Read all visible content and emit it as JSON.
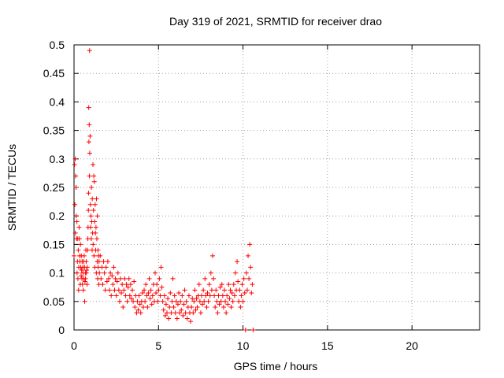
{
  "chart_data": {
    "type": "scatter",
    "title": "Day 319 of 2021, SRMTID for receiver drao",
    "xlabel": "GPS time / hours",
    "ylabel": "SRMTID / TECUs",
    "xlim": [
      0,
      24
    ],
    "ylim": [
      0,
      0.5
    ],
    "xticks": [
      0,
      5,
      10,
      15,
      20
    ],
    "yticks": [
      0,
      0.05,
      0.1,
      0.15,
      0.2,
      0.25,
      0.3,
      0.35,
      0.4,
      0.45,
      0.5
    ],
    "xtick_labels": [
      "0",
      "5",
      "10",
      "15",
      "20"
    ],
    "ytick_labels": [
      "0",
      "0.05",
      "0.1",
      "0.15",
      "0.2",
      "0.25",
      "0.3",
      "0.35",
      "0.4",
      "0.45",
      "0.5"
    ],
    "grid": true,
    "marker": "+",
    "series": [
      {
        "name": "SRMTID",
        "color": "#ff0000",
        "points": [
          [
            0.0,
            0.13
          ],
          [
            0.03,
            0.29
          ],
          [
            0.05,
            0.22
          ],
          [
            0.07,
            0.3
          ],
          [
            0.08,
            0.17
          ],
          [
            0.1,
            0.27
          ],
          [
            0.12,
            0.25
          ],
          [
            0.13,
            0.2
          ],
          [
            0.15,
            0.16
          ],
          [
            0.17,
            0.19
          ],
          [
            0.18,
            0.1
          ],
          [
            0.2,
            0.12
          ],
          [
            0.22,
            0.16
          ],
          [
            0.23,
            0.09
          ],
          [
            0.25,
            0.14
          ],
          [
            0.27,
            0.07
          ],
          [
            0.28,
            0.11
          ],
          [
            0.3,
            0.18
          ],
          [
            0.32,
            0.16
          ],
          [
            0.33,
            0.13
          ],
          [
            0.35,
            0.12
          ],
          [
            0.37,
            0.08
          ],
          [
            0.38,
            0.15
          ],
          [
            0.4,
            0.11
          ],
          [
            0.42,
            0.095
          ],
          [
            0.43,
            0.13
          ],
          [
            0.45,
            0.105
          ],
          [
            0.47,
            0.09
          ],
          [
            0.48,
            0.12
          ],
          [
            0.5,
            0.08
          ],
          [
            0.52,
            0.11
          ],
          [
            0.53,
            0.1
          ],
          [
            0.55,
            0.07
          ],
          [
            0.57,
            0.12
          ],
          [
            0.58,
            0.09
          ],
          [
            0.6,
            0.13
          ],
          [
            0.62,
            0.11
          ],
          [
            0.63,
            0.05
          ],
          [
            0.65,
            0.085
          ],
          [
            0.67,
            0.1
          ],
          [
            0.68,
            0.09
          ],
          [
            0.7,
            0.14
          ],
          [
            0.72,
            0.12
          ],
          [
            0.73,
            0.1
          ],
          [
            0.75,
            0.105
          ],
          [
            0.77,
            0.08
          ],
          [
            0.78,
            0.11
          ],
          [
            0.8,
            0.14
          ],
          [
            0.82,
            0.16
          ],
          [
            0.83,
            0.18
          ],
          [
            0.85,
            0.21
          ],
          [
            0.86,
            0.24
          ],
          [
            0.87,
            0.39
          ],
          [
            0.88,
            0.33
          ],
          [
            0.9,
            0.36
          ],
          [
            0.91,
            0.27
          ],
          [
            0.92,
            0.49
          ],
          [
            0.93,
            0.31
          ],
          [
            0.95,
            0.34
          ],
          [
            0.97,
            0.22
          ],
          [
            0.98,
            0.18
          ],
          [
            1.0,
            0.2
          ],
          [
            1.02,
            0.16
          ],
          [
            1.03,
            0.25
          ],
          [
            1.05,
            0.19
          ],
          [
            1.07,
            0.14
          ],
          [
            1.08,
            0.23
          ],
          [
            1.1,
            0.17
          ],
          [
            1.12,
            0.29
          ],
          [
            1.13,
            0.15
          ],
          [
            1.15,
            0.21
          ],
          [
            1.17,
            0.27
          ],
          [
            1.18,
            0.13
          ],
          [
            1.2,
            0.26
          ],
          [
            1.22,
            0.19
          ],
          [
            1.23,
            0.11
          ],
          [
            1.25,
            0.22
          ],
          [
            1.27,
            0.17
          ],
          [
            1.28,
            0.14
          ],
          [
            1.3,
            0.18
          ],
          [
            1.32,
            0.1
          ],
          [
            1.33,
            0.23
          ],
          [
            1.35,
            0.16
          ],
          [
            1.37,
            0.12
          ],
          [
            1.38,
            0.2
          ],
          [
            1.4,
            0.09
          ],
          [
            1.42,
            0.14
          ],
          [
            1.43,
            0.11
          ],
          [
            1.45,
            0.13
          ],
          [
            1.47,
            0.08
          ],
          [
            1.48,
            0.12
          ],
          [
            1.5,
            0.1
          ],
          [
            1.55,
            0.13
          ],
          [
            1.6,
            0.09
          ],
          [
            1.65,
            0.11
          ],
          [
            1.7,
            0.08
          ],
          [
            1.75,
            0.12
          ],
          [
            1.8,
            0.1
          ],
          [
            1.85,
            0.07
          ],
          [
            1.9,
            0.11
          ],
          [
            1.95,
            0.085
          ],
          [
            2.0,
            0.12
          ],
          [
            2.05,
            0.09
          ],
          [
            2.1,
            0.07
          ],
          [
            2.15,
            0.1
          ],
          [
            2.2,
            0.06
          ],
          [
            2.25,
            0.095
          ],
          [
            2.3,
            0.08
          ],
          [
            2.35,
            0.11
          ],
          [
            2.4,
            0.07
          ],
          [
            2.45,
            0.09
          ],
          [
            2.5,
            0.06
          ],
          [
            2.55,
            0.085
          ],
          [
            2.6,
            0.1
          ],
          [
            2.65,
            0.07
          ],
          [
            2.7,
            0.05
          ],
          [
            2.75,
            0.09
          ],
          [
            2.8,
            0.065
          ],
          [
            2.85,
            0.08
          ],
          [
            2.9,
            0.04
          ],
          [
            2.95,
            0.07
          ],
          [
            3.0,
            0.09
          ],
          [
            3.05,
            0.06
          ],
          [
            3.1,
            0.08
          ],
          [
            3.15,
            0.05
          ],
          [
            3.2,
            0.075
          ],
          [
            3.25,
            0.09
          ],
          [
            3.3,
            0.06
          ],
          [
            3.35,
            0.08
          ],
          [
            3.4,
            0.055
          ],
          [
            3.45,
            0.07
          ],
          [
            3.5,
            0.05
          ],
          [
            3.55,
            0.085
          ],
          [
            3.6,
            0.04
          ],
          [
            3.65,
            0.06
          ],
          [
            3.7,
            0.03
          ],
          [
            3.75,
            0.05
          ],
          [
            3.8,
            0.035
          ],
          [
            3.85,
            0.06
          ],
          [
            3.9,
            0.045
          ],
          [
            3.95,
            0.03
          ],
          [
            4.0,
            0.05
          ],
          [
            4.05,
            0.065
          ],
          [
            4.1,
            0.04
          ],
          [
            4.15,
            0.07
          ],
          [
            4.2,
            0.05
          ],
          [
            4.25,
            0.08
          ],
          [
            4.3,
            0.06
          ],
          [
            4.35,
            0.04
          ],
          [
            4.4,
            0.065
          ],
          [
            4.45,
            0.09
          ],
          [
            4.5,
            0.055
          ],
          [
            4.55,
            0.07
          ],
          [
            4.6,
            0.045
          ],
          [
            4.65,
            0.06
          ],
          [
            4.7,
            0.08
          ],
          [
            4.75,
            0.05
          ],
          [
            4.8,
            0.1
          ],
          [
            4.85,
            0.065
          ],
          [
            4.9,
            0.08
          ],
          [
            4.95,
            0.05
          ],
          [
            5.0,
            0.07
          ],
          [
            5.05,
            0.09
          ],
          [
            5.1,
            0.06
          ],
          [
            5.15,
            0.11
          ],
          [
            5.2,
            0.075
          ],
          [
            5.25,
            0.05
          ],
          [
            5.3,
            0.035
          ],
          [
            5.35,
            0.06
          ],
          [
            5.4,
            0.025
          ],
          [
            5.45,
            0.045
          ],
          [
            5.5,
            0.03
          ],
          [
            5.55,
            0.055
          ],
          [
            5.6,
            0.02
          ],
          [
            5.65,
            0.04
          ],
          [
            5.7,
            0.065
          ],
          [
            5.75,
            0.03
          ],
          [
            5.8,
            0.05
          ],
          [
            5.85,
            0.09
          ],
          [
            5.9,
            0.04
          ],
          [
            5.95,
            0.06
          ],
          [
            6.0,
            0.03
          ],
          [
            6.05,
            0.05
          ],
          [
            6.1,
            0.02
          ],
          [
            6.15,
            0.045
          ],
          [
            6.2,
            0.065
          ],
          [
            6.25,
            0.03
          ],
          [
            6.3,
            0.05
          ],
          [
            6.35,
            0.035
          ],
          [
            6.4,
            0.06
          ],
          [
            6.45,
            0.025
          ],
          [
            6.5,
            0.045
          ],
          [
            6.55,
            0.07
          ],
          [
            6.6,
            0.03
          ],
          [
            6.65,
            0.05
          ],
          [
            6.7,
            0.02
          ],
          [
            6.75,
            0.04
          ],
          [
            6.8,
            0.06
          ],
          [
            6.85,
            0.03
          ],
          [
            6.9,
            0.015
          ],
          [
            6.95,
            0.04
          ],
          [
            7.0,
            0.055
          ],
          [
            7.05,
            0.03
          ],
          [
            7.1,
            0.05
          ],
          [
            7.15,
            0.07
          ],
          [
            7.2,
            0.035
          ],
          [
            7.25,
            0.055
          ],
          [
            7.3,
            0.04
          ],
          [
            7.35,
            0.06
          ],
          [
            7.4,
            0.08
          ],
          [
            7.45,
            0.05
          ],
          [
            7.5,
            0.03
          ],
          [
            7.55,
            0.06
          ],
          [
            7.6,
            0.045
          ],
          [
            7.65,
            0.07
          ],
          [
            7.7,
            0.05
          ],
          [
            7.75,
            0.09
          ],
          [
            7.8,
            0.06
          ],
          [
            7.85,
            0.04
          ],
          [
            7.9,
            0.065
          ],
          [
            7.95,
            0.05
          ],
          [
            8.0,
            0.08
          ],
          [
            8.05,
            0.06
          ],
          [
            8.1,
            0.1
          ],
          [
            8.15,
            0.07
          ],
          [
            8.2,
            0.13
          ],
          [
            8.25,
            0.09
          ],
          [
            8.3,
            0.06
          ],
          [
            8.35,
            0.04
          ],
          [
            8.4,
            0.07
          ],
          [
            8.45,
            0.05
          ],
          [
            8.5,
            0.03
          ],
          [
            8.55,
            0.06
          ],
          [
            8.6,
            0.045
          ],
          [
            8.65,
            0.075
          ],
          [
            8.7,
            0.05
          ],
          [
            8.75,
            0.08
          ],
          [
            8.8,
            0.06
          ],
          [
            8.85,
            0.04
          ],
          [
            8.9,
            0.07
          ],
          [
            8.95,
            0.05
          ],
          [
            9.0,
            0.03
          ],
          [
            9.05,
            0.06
          ],
          [
            9.1,
            0.045
          ],
          [
            9.15,
            0.08
          ],
          [
            9.2,
            0.055
          ],
          [
            9.25,
            0.07
          ],
          [
            9.3,
            0.04
          ],
          [
            9.35,
            0.065
          ],
          [
            9.4,
            0.05
          ],
          [
            9.45,
            0.08
          ],
          [
            9.5,
            0.06
          ],
          [
            9.55,
            0.1
          ],
          [
            9.6,
            0.07
          ],
          [
            9.65,
            0.12
          ],
          [
            9.7,
            0.085
          ],
          [
            9.75,
            0.05
          ],
          [
            9.8,
            0.07
          ],
          [
            9.85,
            0.04
          ],
          [
            9.9,
            0.06
          ],
          [
            9.95,
            0.08
          ],
          [
            10.0,
            0.05
          ],
          [
            10.05,
            0.09
          ],
          [
            10.1,
            0.065
          ],
          [
            10.15,
            0.0
          ],
          [
            10.2,
            0.1
          ],
          [
            10.25,
            0.07
          ],
          [
            10.3,
            0.13
          ],
          [
            10.35,
            0.09
          ],
          [
            10.4,
            0.15
          ],
          [
            10.45,
            0.11
          ],
          [
            10.5,
            0.065
          ],
          [
            10.55,
            0.08
          ],
          [
            10.6,
            0.0
          ]
        ]
      }
    ]
  }
}
